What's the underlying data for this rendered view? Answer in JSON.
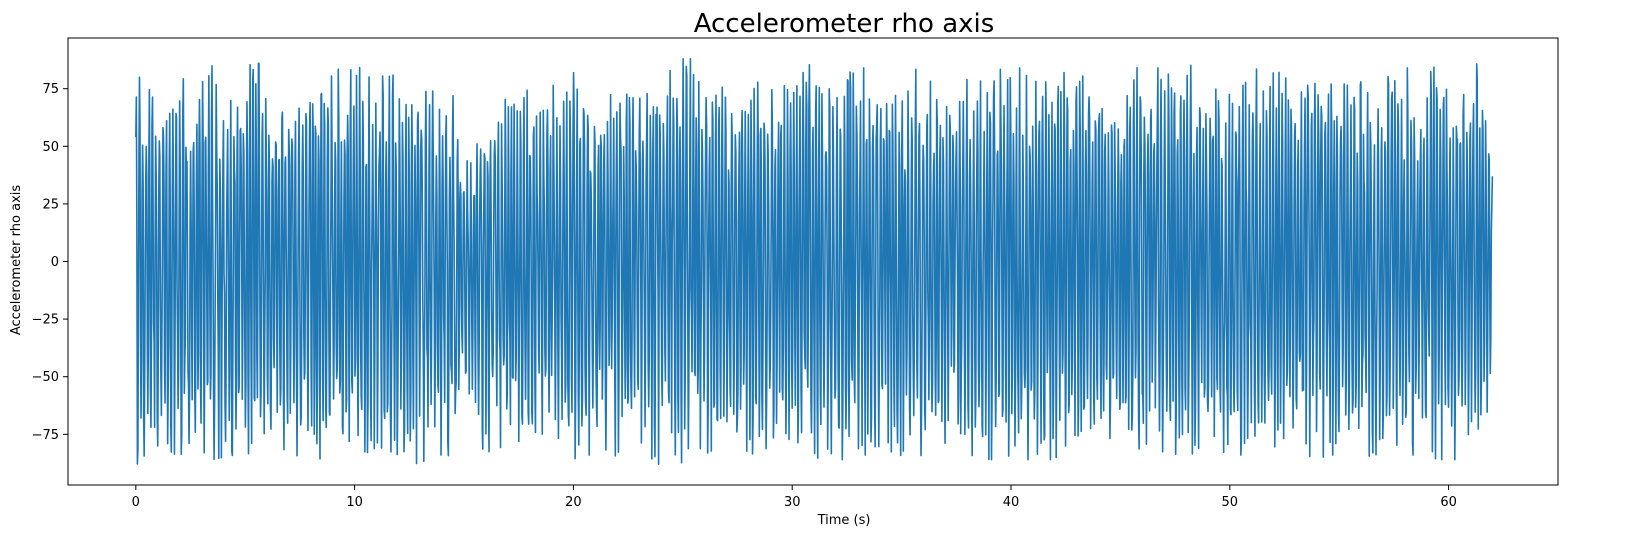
{
  "chart_data": {
    "type": "line",
    "title": "Accelerometer rho axis",
    "xlabel": "Time (s)",
    "ylabel": "Accelerometer rho axis",
    "xlim": [
      -3.1,
      65.0
    ],
    "ylim": [
      -97,
      97
    ],
    "x_ticks": [
      0,
      10,
      20,
      30,
      40,
      50,
      60
    ],
    "y_ticks": [
      -75,
      -50,
      -25,
      0,
      25,
      50,
      75
    ],
    "grid": false,
    "legend": "none",
    "line_color": "#1f77b4",
    "series": [
      {
        "x_start": 0,
        "x_end": 62,
        "y_min": -88,
        "y_max": 89,
        "peak_envelope": [
          [
            0.0,
            78,
            -88
          ],
          [
            0.5,
            84,
            -87
          ],
          [
            1.0,
            60,
            -80
          ],
          [
            1.5,
            62,
            -82
          ],
          [
            2.0,
            85,
            -85
          ],
          [
            2.5,
            72,
            -78
          ],
          [
            3.0,
            84,
            -82
          ],
          [
            3.5,
            85,
            -86
          ],
          [
            4.0,
            74,
            -85
          ],
          [
            4.5,
            68,
            -84
          ],
          [
            5.0,
            85,
            -84
          ],
          [
            5.5,
            86,
            -82
          ],
          [
            6.0,
            86,
            -72
          ],
          [
            6.5,
            70,
            -74
          ],
          [
            7.0,
            86,
            -88
          ],
          [
            7.5,
            78,
            -87
          ],
          [
            8.0,
            76,
            -84
          ],
          [
            8.5,
            78,
            -86
          ],
          [
            9.0,
            89,
            -78
          ],
          [
            9.5,
            78,
            -86
          ],
          [
            10.0,
            86,
            -84
          ],
          [
            10.5,
            82,
            -86
          ],
          [
            11.0,
            76,
            -80
          ],
          [
            11.5,
            84,
            -82
          ],
          [
            12.0,
            78,
            -84
          ],
          [
            12.5,
            64,
            -87
          ],
          [
            13.0,
            82,
            -88
          ],
          [
            13.5,
            80,
            -84
          ],
          [
            14.0,
            66,
            -84
          ],
          [
            14.5,
            76,
            -86
          ],
          [
            15.0,
            42,
            -54
          ],
          [
            15.5,
            48,
            -80
          ],
          [
            16.0,
            64,
            -82
          ],
          [
            16.5,
            60,
            -84
          ],
          [
            17.0,
            84,
            -84
          ],
          [
            17.5,
            82,
            -78
          ],
          [
            18.0,
            84,
            -84
          ],
          [
            18.5,
            64,
            -74
          ],
          [
            19.0,
            78,
            -80
          ],
          [
            19.5,
            68,
            -82
          ],
          [
            20.0,
            82,
            -86
          ],
          [
            20.5,
            78,
            -84
          ],
          [
            21.0,
            82,
            -84
          ],
          [
            21.5,
            66,
            -86
          ],
          [
            22.0,
            82,
            -84
          ],
          [
            22.5,
            84,
            -80
          ],
          [
            23.0,
            70,
            -80
          ],
          [
            23.5,
            82,
            -88
          ],
          [
            24.0,
            78,
            -88
          ],
          [
            24.5,
            84,
            -82
          ],
          [
            25.0,
            88,
            -88
          ],
          [
            25.5,
            88,
            -84
          ],
          [
            26.0,
            78,
            -82
          ],
          [
            26.5,
            72,
            -86
          ],
          [
            27.0,
            78,
            -82
          ],
          [
            27.5,
            86,
            -84
          ],
          [
            28.0,
            88,
            -82
          ],
          [
            28.5,
            76,
            -86
          ],
          [
            29.0,
            74,
            -86
          ],
          [
            29.5,
            78,
            -80
          ],
          [
            30.0,
            72,
            -86
          ],
          [
            30.5,
            82,
            -88
          ],
          [
            31.0,
            88,
            -88
          ],
          [
            31.5,
            82,
            -80
          ],
          [
            32.0,
            70,
            -86
          ],
          [
            32.5,
            88,
            -86
          ],
          [
            33.0,
            84,
            -84
          ],
          [
            33.5,
            84,
            -84
          ],
          [
            34.0,
            86,
            -80
          ],
          [
            34.5,
            78,
            -86
          ],
          [
            35.0,
            72,
            -84
          ],
          [
            35.5,
            84,
            -86
          ],
          [
            36.0,
            82,
            -86
          ],
          [
            36.5,
            76,
            -82
          ],
          [
            37.0,
            86,
            -86
          ],
          [
            37.5,
            76,
            -82
          ],
          [
            38.0,
            82,
            -86
          ],
          [
            38.5,
            80,
            -82
          ],
          [
            39.0,
            72,
            -86
          ],
          [
            39.5,
            86,
            -86
          ],
          [
            40.0,
            84,
            -84
          ],
          [
            40.5,
            84,
            -86
          ],
          [
            41.0,
            76,
            -86
          ],
          [
            41.5,
            84,
            -86
          ],
          [
            42.0,
            82,
            -86
          ],
          [
            42.5,
            82,
            -80
          ],
          [
            43.0,
            76,
            -88
          ],
          [
            43.5,
            84,
            -84
          ],
          [
            44.0,
            82,
            -84
          ],
          [
            44.5,
            64,
            -80
          ],
          [
            45.0,
            56,
            -86
          ],
          [
            45.5,
            82,
            -86
          ],
          [
            46.0,
            86,
            -84
          ],
          [
            46.5,
            84,
            -86
          ],
          [
            47.0,
            84,
            -82
          ],
          [
            47.5,
            89,
            -88
          ],
          [
            48.0,
            86,
            -88
          ],
          [
            48.5,
            84,
            -86
          ],
          [
            49.0,
            80,
            -84
          ],
          [
            49.5,
            78,
            -84
          ],
          [
            50.0,
            82,
            -82
          ],
          [
            50.5,
            76,
            -84
          ],
          [
            51.0,
            80,
            -84
          ],
          [
            51.5,
            88,
            -86
          ],
          [
            52.0,
            84,
            -80
          ],
          [
            52.5,
            82,
            -84
          ],
          [
            53.0,
            84,
            -86
          ],
          [
            53.5,
            82,
            -84
          ],
          [
            54.0,
            76,
            -86
          ],
          [
            54.5,
            80,
            -84
          ],
          [
            55.0,
            78,
            -84
          ],
          [
            55.5,
            76,
            -84
          ],
          [
            56.0,
            78,
            -80
          ],
          [
            56.5,
            80,
            -86
          ],
          [
            57.0,
            82,
            -86
          ],
          [
            57.5,
            80,
            -84
          ],
          [
            58.0,
            84,
            -84
          ],
          [
            58.5,
            84,
            -84
          ],
          [
            59.0,
            82,
            -84
          ],
          [
            59.5,
            86,
            -86
          ],
          [
            60.0,
            86,
            -86
          ],
          [
            60.5,
            84,
            -86
          ],
          [
            61.0,
            86,
            -84
          ],
          [
            61.5,
            86,
            -80
          ],
          [
            62.0,
            37,
            -52
          ]
        ]
      }
    ]
  }
}
